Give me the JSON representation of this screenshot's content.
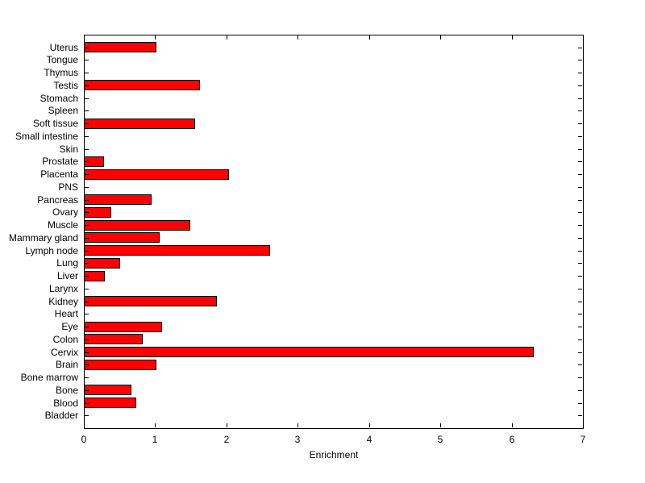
{
  "figure": {
    "background_color": "#ffffff",
    "axis_color": "#000000"
  },
  "chart_data": {
    "type": "bar",
    "orientation": "horizontal",
    "title": "",
    "xlabel": "Enrichment",
    "ylabel": "",
    "xlim": [
      0,
      7
    ],
    "xticks": [
      0,
      1,
      2,
      3,
      4,
      5,
      6,
      7
    ],
    "grid": false,
    "bar_color": "#ff0000",
    "bar_edge_color": "#000000",
    "categories_top_to_bottom": [
      "Uterus",
      "Tongue",
      "Thymus",
      "Testis",
      "Stomach",
      "Spleen",
      "Soft tissue",
      "Small intestine",
      "Skin",
      "Prostate",
      "Placenta",
      "PNS",
      "Pancreas",
      "Ovary",
      "Muscle",
      "Mammary gland",
      "Lymph node",
      "Lung",
      "Liver",
      "Larynx",
      "Kidney",
      "Heart",
      "Eye",
      "Colon",
      "Cervix",
      "Brain",
      "Bone marrow",
      "Bone",
      "Blood",
      "Bladder"
    ],
    "values": [
      1.02,
      0,
      0,
      1.63,
      0,
      0,
      1.56,
      0,
      0,
      0.28,
      2.03,
      0,
      0.95,
      0.39,
      1.49,
      1.06,
      2.61,
      0.51,
      0.29,
      0,
      1.87,
      0,
      1.1,
      0.82,
      6.31,
      1.02,
      0,
      0.67,
      0.74,
      0
    ]
  }
}
